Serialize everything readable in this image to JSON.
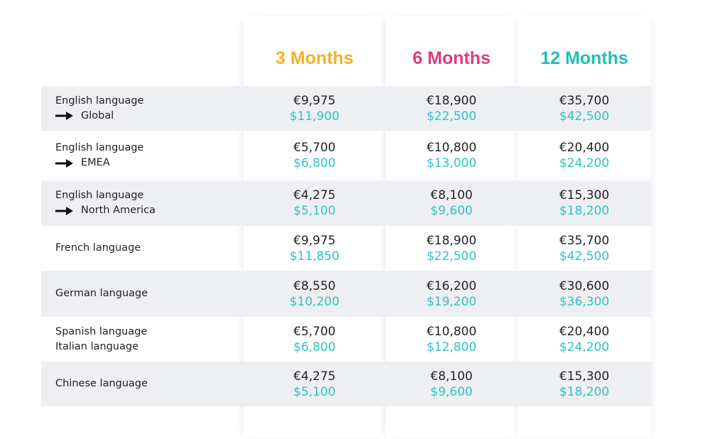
{
  "colors": {
    "three_months": "#f2b12b",
    "six_months": "#e13a7e",
    "twelve_months": "#21bfb0",
    "usd_text": "#2ec4c0",
    "row_shade": "#eeeff2"
  },
  "headers": {
    "three_months": "3 Months",
    "six_months": "6 Months",
    "twelve_months": "12 Months"
  },
  "rows": [
    {
      "label": "English language",
      "sub": "Global",
      "arrow": true,
      "m3": {
        "eur": "€9,975",
        "usd": "$11,900"
      },
      "m6": {
        "eur": "€18,900",
        "usd": "$22,500"
      },
      "m12": {
        "eur": "€35,700",
        "usd": "$42,500"
      }
    },
    {
      "label": "English language",
      "sub": "EMEA",
      "arrow": true,
      "m3": {
        "eur": "€5,700",
        "usd": "$6,800"
      },
      "m6": {
        "eur": "€10,800",
        "usd": "$13,000"
      },
      "m12": {
        "eur": "€20,400",
        "usd": "$24,200"
      }
    },
    {
      "label": "English language",
      "sub": "North America",
      "arrow": true,
      "m3": {
        "eur": "€4,275",
        "usd": "$5,100"
      },
      "m6": {
        "eur": "€8,100",
        "usd": "$9,600"
      },
      "m12": {
        "eur": "€15,300",
        "usd": "$18,200"
      }
    },
    {
      "label": "French language",
      "sub": "",
      "arrow": false,
      "m3": {
        "eur": "€9,975",
        "usd": "$11,850"
      },
      "m6": {
        "eur": "€18,900",
        "usd": "$22,500"
      },
      "m12": {
        "eur": "€35,700",
        "usd": "$42,500"
      }
    },
    {
      "label": "German language",
      "sub": "",
      "arrow": false,
      "m3": {
        "eur": "€8,550",
        "usd": "$10,200"
      },
      "m6": {
        "eur": "€16,200",
        "usd": "$19,200"
      },
      "m12": {
        "eur": "€30,600",
        "usd": "$36,300"
      }
    },
    {
      "label": "Spanish language",
      "sub": "Italian language",
      "arrow": false,
      "m3": {
        "eur": "€5,700",
        "usd": "$6,800"
      },
      "m6": {
        "eur": "€10,800",
        "usd": "$12,800"
      },
      "m12": {
        "eur": "€20,400",
        "usd": "$24,200"
      }
    },
    {
      "label": "Chinese language",
      "sub": "",
      "arrow": false,
      "m3": {
        "eur": "€4,275",
        "usd": "$5,100"
      },
      "m6": {
        "eur": "€8,100",
        "usd": "$9,600"
      },
      "m12": {
        "eur": "€15,300",
        "usd": "$18,200"
      }
    }
  ]
}
